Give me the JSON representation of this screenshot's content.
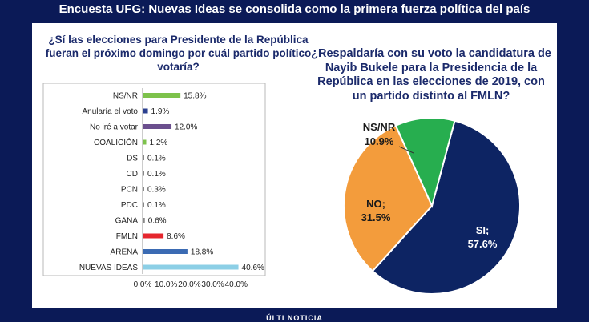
{
  "header": {
    "title": "Encuesta UFG: Nuevas Ideas se consolida como la primera fuerza política del país"
  },
  "footer": {
    "text": "ÚLTI NOTICIA"
  },
  "colors": {
    "background": "#0b1a57",
    "panel": "#ffffff",
    "title_text": "#1b2a6b",
    "pie_si": "#0d2463",
    "pie_no": "#f39c3c",
    "pie_nsnr": "#27ae4f"
  },
  "chart_data": [
    {
      "type": "bar",
      "orientation": "horizontal",
      "title": "¿Sí las elecciones para Presidente de la República fueran el próximo domingo por cuál partido político votaría?",
      "categories": [
        "NS/NR",
        "Anularía el voto",
        "No iré a votar",
        "COALICIÓN",
        "DS",
        "CD",
        "PCN",
        "PDC",
        "GANA",
        "FMLN",
        "ARENA",
        "NUEVAS IDEAS"
      ],
      "values": [
        15.8,
        1.9,
        12.0,
        1.2,
        0.1,
        0.1,
        0.3,
        0.1,
        0.6,
        8.6,
        18.8,
        40.6
      ],
      "value_labels": [
        "15.8%",
        "1.9%",
        "12.0%",
        "1.2%",
        "0.1%",
        "0.1%",
        "0.3%",
        "0.1%",
        "0.6%",
        "8.6%",
        "18.8%",
        "40.6%"
      ],
      "bar_colors": [
        "#7dc24b",
        "#2a3f8f",
        "#6b4f8e",
        "#7dc24b",
        "#888888",
        "#888888",
        "#888888",
        "#888888",
        "#888888",
        "#e5262d",
        "#3b6bb3",
        "#8ccfe6"
      ],
      "xlim": [
        0,
        40
      ],
      "xticks": [
        "0.0%",
        "10.0%",
        "20.0%",
        "30.0%",
        "40.0%"
      ],
      "grid": false
    },
    {
      "type": "pie",
      "title": "¿Respaldaría con su voto la candidatura de Nayib Bukele para la Presidencia de la República en las elecciones de 2019, con un partido distinto al FMLN?",
      "slices": [
        {
          "label": "SI;",
          "value": 57.6,
          "value_label": "57.6%",
          "color": "#0d2463"
        },
        {
          "label": "NO;",
          "value": 31.5,
          "value_label": "31.5%",
          "color": "#f39c3c"
        },
        {
          "label": "NS/NR",
          "value": 10.9,
          "value_label": "10.9%",
          "color": "#27ae4f"
        }
      ]
    }
  ]
}
